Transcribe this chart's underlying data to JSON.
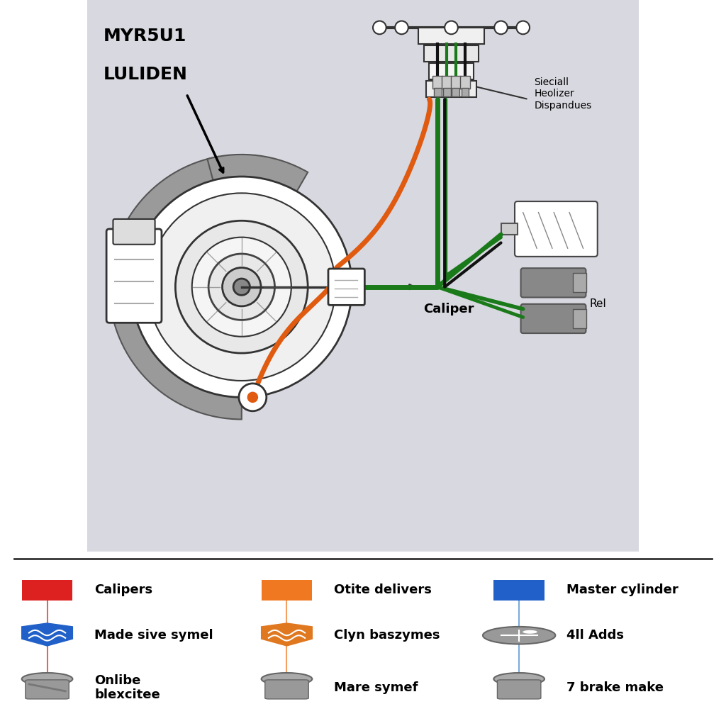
{
  "title_line1": "MYR5U1",
  "title_line2": "LULIDEN",
  "diagram_bg": "#d8d8e0",
  "label_strut": "Sieciall\nHeolizer\nDispandues",
  "label_caliper": "Caliper",
  "label_rel": "Rel",
  "orange_color": "#e05a10",
  "green_color": "#1a7a1a",
  "black_color": "#111111",
  "grey_shield": "#888888",
  "legend": [
    {
      "col": 0,
      "row": 0,
      "color": "#dd2020",
      "shape": "rect",
      "label": "Calipers"
    },
    {
      "col": 1,
      "row": 0,
      "color": "#f07820",
      "shape": "rect",
      "label": "Otite delivers"
    },
    {
      "col": 2,
      "row": 0,
      "color": "#2060c8",
      "shape": "rect",
      "label": "Master cylinder"
    },
    {
      "col": 0,
      "row": 1,
      "color": "#2060c8",
      "shape": "shield_blue",
      "label": "Made sive symel"
    },
    {
      "col": 1,
      "row": 1,
      "color": "#e07820",
      "shape": "shield_orange",
      "label": "Clyn baszymes"
    },
    {
      "col": 2,
      "row": 1,
      "color": "#888888",
      "shape": "gauge",
      "label": "4ll Adds"
    },
    {
      "col": 0,
      "row": 2,
      "color": "#666666",
      "shape": "runner",
      "label": "Onlibe\nblexcitee"
    },
    {
      "col": 1,
      "row": 2,
      "color": "#666666",
      "shape": "person",
      "label": "Mare symef"
    },
    {
      "col": 2,
      "row": 2,
      "color": "#666666",
      "shape": "person",
      "label": "7 brake make"
    }
  ],
  "vline_colors": [
    "#dd2020",
    "#f07820",
    "#4488cc"
  ]
}
